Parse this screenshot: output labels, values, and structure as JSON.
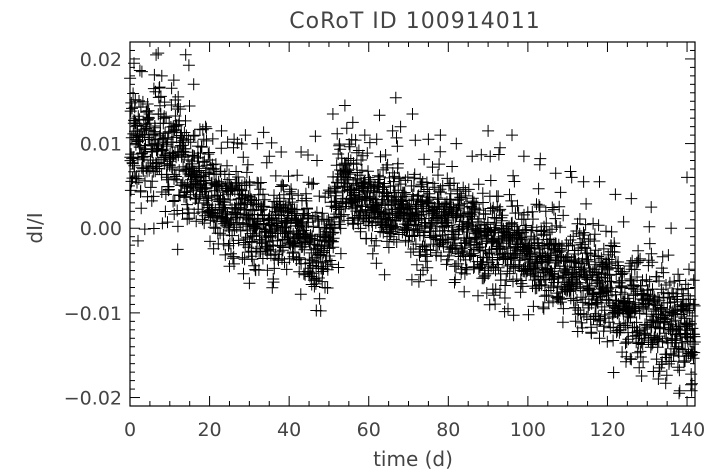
{
  "chart_data": {
    "type": "scatter",
    "title": "CoRoT ID 100914011",
    "xlabel": "time (d)",
    "ylabel": "dI/I",
    "xlim": [
      0,
      142
    ],
    "ylim": [
      -0.021,
      0.022
    ],
    "x_ticks": [
      0,
      20,
      40,
      60,
      80,
      100,
      120,
      140
    ],
    "x_tick_labels": [
      "0",
      "20",
      "40",
      "60",
      "80",
      "100",
      "120",
      "140"
    ],
    "y_ticks": [
      -0.02,
      -0.01,
      0.0,
      0.01,
      0.02
    ],
    "y_tick_labels": [
      "−0.02",
      "−0.01",
      "0.00",
      "0.01",
      "0.02"
    ],
    "grid": false,
    "marker": "plus",
    "color": "#000000",
    "series": [
      {
        "trend": {
          "x": [
            0,
            5,
            10,
            15,
            20,
            25,
            30,
            35,
            40,
            45,
            48,
            50,
            53,
            55,
            60,
            65,
            70,
            75,
            80,
            85,
            90,
            95,
            100,
            105,
            110,
            115,
            120,
            125,
            130,
            135,
            140,
            142
          ],
          "y": [
            0.0095,
            0.0095,
            0.009,
            0.007,
            0.0045,
            0.002,
            0.0005,
            0.0,
            0.0,
            -0.0015,
            -0.003,
            -0.001,
            0.005,
            0.005,
            0.003,
            0.002,
            0.0015,
            0.001,
            0.0005,
            -0.0005,
            -0.0015,
            -0.0025,
            -0.003,
            -0.004,
            -0.005,
            -0.006,
            -0.0075,
            -0.009,
            -0.0105,
            -0.0115,
            -0.0125,
            -0.013
          ]
        },
        "spread": {
          "x": [
            0,
            10,
            20,
            40,
            60,
            80,
            100,
            120,
            142
          ],
          "y": [
            0.0035,
            0.0033,
            0.003,
            0.0027,
            0.0027,
            0.0027,
            0.0029,
            0.0031,
            0.0034
          ]
        },
        "upper_outliers": {
          "x": [
            1,
            3,
            6,
            8,
            11,
            14,
            16,
            19,
            23,
            26,
            29,
            32,
            35,
            38,
            43,
            47,
            51,
            54,
            56,
            59,
            62,
            66,
            68,
            71,
            75,
            78,
            82,
            86,
            90,
            93,
            96,
            99,
            103,
            107,
            111,
            114,
            118,
            122,
            126,
            131,
            136,
            140
          ],
          "y": [
            0.0195,
            0.0185,
            0.0165,
            0.018,
            0.0175,
            0.0205,
            0.017,
            0.012,
            0.0115,
            0.0095,
            0.011,
            0.01,
            0.0085,
            0.009,
            0.009,
            0.008,
            0.0135,
            0.0145,
            0.0125,
            0.011,
            0.0105,
            0.0115,
            0.012,
            0.0135,
            0.0105,
            0.011,
            0.01,
            0.0085,
            0.0115,
            0.0095,
            0.011,
            0.0085,
            0.0075,
            0.0065,
            0.006,
            0.0055,
            0.0055,
            0.004,
            0.0035,
            0.0025,
            0.0,
            0.006
          ]
        },
        "lower_outliers": {
          "x": [
            2,
            12,
            25,
            30,
            36,
            44,
            49,
            53,
            64,
            73,
            84,
            95,
            104,
            112,
            118,
            126,
            133,
            138,
            141
          ],
          "y": [
            -0.0015,
            -0.0025,
            -0.0045,
            -0.0065,
            -0.006,
            -0.0055,
            -0.007,
            -0.003,
            -0.0055,
            -0.0055,
            -0.0075,
            -0.0095,
            -0.0095,
            -0.011,
            -0.013,
            -0.0155,
            -0.0165,
            -0.0195,
            -0.0185
          ]
        },
        "n_points": 2600
      }
    ]
  }
}
